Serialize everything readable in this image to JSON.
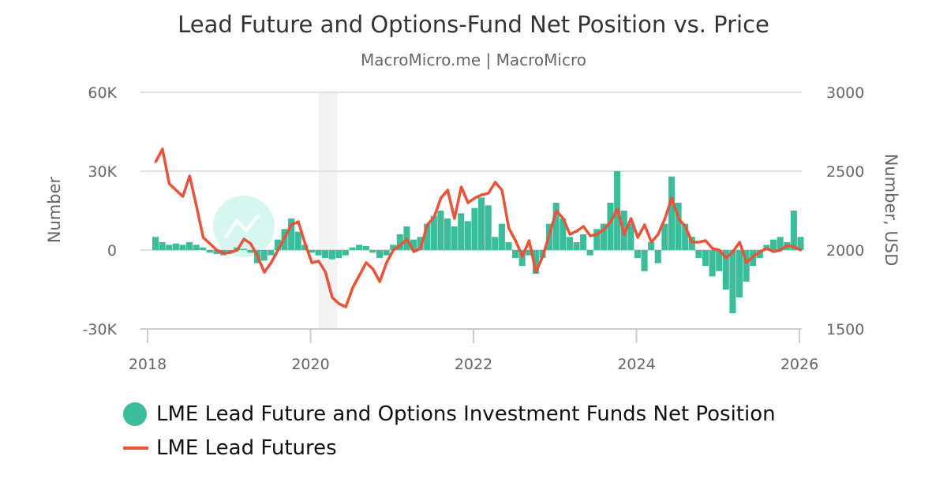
{
  "title": "Lead Future and Options-Fund Net Position vs. Price",
  "subtitle": "MacroMicro.me | MacroMicro",
  "watermark": "MacroMicro",
  "chart_data": {
    "type": "bar+line",
    "title": "Lead Future and Options-Fund Net Position vs. Price",
    "subtitle": "MacroMicro.me | MacroMicro",
    "left_axis": {
      "label": "Number",
      "ticks": [
        "-30K",
        "0",
        "30K",
        "60K"
      ],
      "tick_values": [
        -30000,
        0,
        30000,
        60000
      ],
      "range": [
        -30000,
        60000
      ]
    },
    "right_axis": {
      "label": "Number, USD",
      "ticks": [
        "1500",
        "2000",
        "2500",
        "3000"
      ],
      "tick_values": [
        1500,
        2000,
        2500,
        3000
      ],
      "range": [
        1500,
        3000
      ]
    },
    "x_axis": {
      "ticks": [
        "2018",
        "2020",
        "2022",
        "2024",
        "2026"
      ],
      "tick_values": [
        2018,
        2020,
        2022,
        2024,
        2026
      ],
      "range": [
        2018,
        2026
      ]
    },
    "grid": true,
    "legend_position": "bottom-left",
    "shaded_periods": [
      [
        2020.1,
        2020.33
      ]
    ],
    "x_start": "2018-01",
    "x_frequency": "monthly",
    "series": [
      {
        "name": "LME Lead Future and Options Investment Funds Net Position",
        "type": "bar",
        "axis": "left",
        "color": "#3bbd9b",
        "values": [
          5000,
          3000,
          2000,
          2500,
          2000,
          3000,
          2000,
          1000,
          -1000,
          -1500,
          -2000,
          -1000,
          1000,
          500,
          -1000,
          -5000,
          -4000,
          -2000,
          4000,
          8000,
          12000,
          7000,
          2000,
          -1000,
          -2000,
          -3000,
          -3500,
          -3000,
          -2000,
          1000,
          2000,
          1500,
          -1000,
          -3000,
          -2000,
          2000,
          6000,
          9000,
          4000,
          5000,
          10000,
          13000,
          15000,
          12000,
          9000,
          14000,
          11000,
          16000,
          20000,
          17000,
          5000,
          10000,
          3000,
          -3000,
          -6000,
          -2000,
          -9000,
          -3000,
          10000,
          18000,
          12000,
          5000,
          3000,
          6000,
          -2000,
          8000,
          10000,
          18000,
          30000,
          15000,
          10000,
          -3000,
          -8000,
          3000,
          -5000,
          10000,
          28000,
          18000,
          10000,
          5000,
          -3000,
          -6000,
          -10000,
          -8000,
          -15000,
          -24000,
          -18000,
          -12000,
          -6000,
          -3000,
          2000,
          4000,
          5000,
          3000,
          15000,
          5000
        ]
      },
      {
        "name": "LME Lead Futures",
        "type": "line",
        "axis": "right",
        "color": "#e8533a",
        "values": [
          2560,
          2640,
          2420,
          2380,
          2340,
          2470,
          2280,
          2080,
          2040,
          2000,
          1980,
          1985,
          2000,
          2070,
          2040,
          1960,
          1860,
          1920,
          2000,
          2080,
          2160,
          2180,
          2040,
          1920,
          1930,
          1860,
          1700,
          1660,
          1640,
          1760,
          1840,
          1920,
          1880,
          1800,
          1920,
          2000,
          2030,
          2070,
          1990,
          2010,
          2160,
          2210,
          2330,
          2380,
          2200,
          2400,
          2300,
          2330,
          2350,
          2360,
          2430,
          2380,
          2140,
          2060,
          1960,
          2060,
          1860,
          1960,
          2100,
          2250,
          2200,
          2100,
          2120,
          2150,
          2090,
          2100,
          2130,
          2180,
          2260,
          2100,
          2200,
          2080,
          2160,
          2050,
          2100,
          2200,
          2330,
          2200,
          2150,
          2050,
          2050,
          2060,
          2010,
          2000,
          1950,
          1990,
          2050,
          1920,
          1960,
          1990,
          2010,
          1990,
          2000,
          2030,
          2020,
          2000
        ]
      }
    ]
  },
  "legend": {
    "items": [
      {
        "label": "LME Lead Future and Options Investment Funds Net Position",
        "color": "#3bbd9b"
      },
      {
        "label": "LME Lead Futures",
        "color": "#e8533a"
      }
    ]
  }
}
